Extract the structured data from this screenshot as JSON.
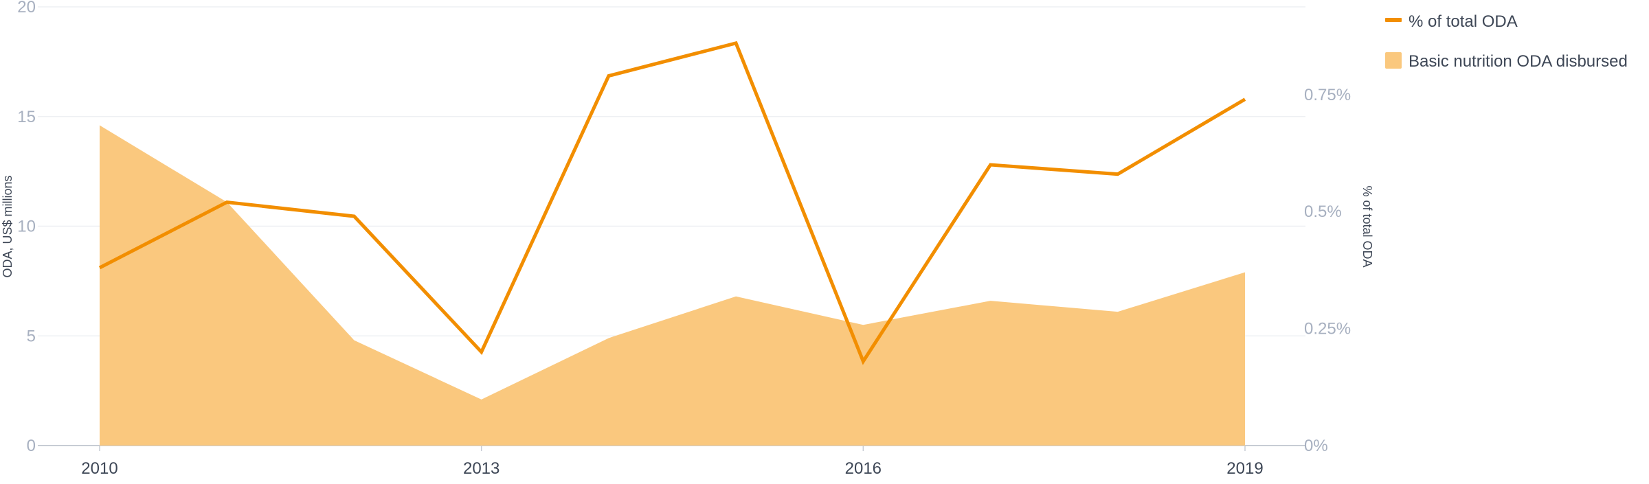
{
  "chart_data": {
    "type": "line+area",
    "title": "",
    "x": [
      2010,
      2011,
      2012,
      2013,
      2014,
      2015,
      2016,
      2017,
      2018,
      2019
    ],
    "x_tick_labels": [
      "2010",
      "2013",
      "2016",
      "2019"
    ],
    "x_tick_values": [
      2010,
      2013,
      2016,
      2019
    ],
    "xlim": [
      2010,
      2019
    ],
    "left_axis": {
      "label": "ODA, US$ millions",
      "ylim": [
        0,
        20
      ],
      "ticks": [
        0,
        5,
        10,
        15,
        20
      ],
      "tick_labels": [
        "0",
        "5",
        "10",
        "15",
        "20"
      ]
    },
    "right_axis": {
      "label": "% of total ODA",
      "ylim": [
        0,
        0.9375
      ],
      "ticks": [
        0,
        0.25,
        0.5,
        0.75
      ],
      "tick_labels": [
        "0%",
        "0.25%",
        "0.5%",
        "0.75%"
      ]
    },
    "series": [
      {
        "name": "% of total ODA",
        "type": "line",
        "axis": "right",
        "color": "#F28E00",
        "values": [
          0.38,
          0.52,
          0.49,
          0.2,
          0.79,
          0.86,
          0.18,
          0.6,
          0.58,
          0.74
        ]
      },
      {
        "name": "Basic nutrition ODA disbursed",
        "type": "area",
        "axis": "left",
        "color": "#FAC87E",
        "values": [
          14.6,
          11.1,
          4.8,
          2.1,
          4.9,
          6.8,
          5.5,
          6.6,
          6.1,
          7.9
        ]
      }
    ],
    "legend": {
      "position": "top-right",
      "items": [
        "% of total ODA",
        "Basic nutrition ODA disbursed"
      ]
    },
    "grid": true
  }
}
